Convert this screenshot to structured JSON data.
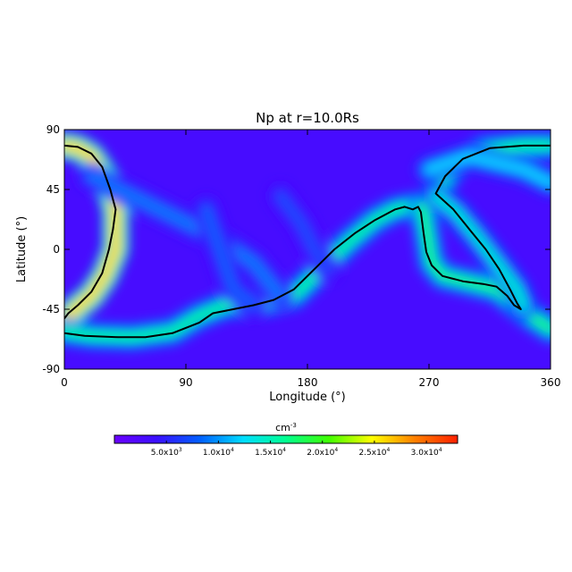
{
  "chart_data": {
    "type": "heatmap",
    "title": "Np at r=10.0Rs",
    "xlabel": "Longitude (°)",
    "ylabel": "Latitude (°)",
    "xlim": [
      0,
      360
    ],
    "ylim": [
      -90,
      90
    ],
    "xticks": [
      0,
      90,
      180,
      270,
      360
    ],
    "yticks": [
      90,
      45,
      0,
      -45,
      -90
    ],
    "xtick_labels": [
      "0",
      "90",
      "180",
      "270",
      "360"
    ],
    "ytick_labels": [
      "90",
      "45",
      "0",
      "-45",
      "-90"
    ],
    "colorbar": {
      "unit_label": "cm",
      "unit_exponent": "-3",
      "range": [
        0,
        33000
      ],
      "colormap": [
        "#6a00ff",
        "#3a10ff",
        "#0060ff",
        "#00ddff",
        "#00ff90",
        "#40ff00",
        "#ffff00",
        "#ff8000",
        "#ff2000"
      ],
      "ticks": [
        5000,
        10000,
        15000,
        20000,
        25000,
        30000
      ],
      "tick_labels": [
        {
          "mantissa": "5.0x10",
          "exponent": "3"
        },
        {
          "mantissa": "1.0x10",
          "exponent": "4"
        },
        {
          "mantissa": "1.5x10",
          "exponent": "4"
        },
        {
          "mantissa": "2.0x10",
          "exponent": "4"
        },
        {
          "mantissa": "2.5x10",
          "exponent": "4"
        },
        {
          "mantissa": "3.0x10",
          "exponent": "4"
        }
      ]
    },
    "background_value": 3000,
    "bright_bands": [
      {
        "value": 26000,
        "points": [
          [
            0,
            78
          ],
          [
            10,
            76
          ],
          [
            20,
            70
          ],
          [
            30,
            55
          ],
          [
            38,
            30
          ],
          [
            38,
            0
          ],
          [
            30,
            -20
          ],
          [
            20,
            -35
          ],
          [
            8,
            -45
          ],
          [
            0,
            -55
          ]
        ]
      },
      {
        "value": 16000,
        "points": [
          [
            0,
            -62
          ],
          [
            20,
            -65
          ],
          [
            50,
            -66
          ],
          [
            80,
            -62
          ],
          [
            100,
            -50
          ],
          [
            120,
            -42
          ],
          [
            150,
            -40
          ],
          [
            170,
            -35
          ],
          [
            190,
            -15
          ],
          [
            210,
            5
          ],
          [
            230,
            22
          ],
          [
            245,
            30
          ],
          [
            260,
            33
          ]
        ]
      },
      {
        "value": 17000,
        "points": [
          [
            265,
            32
          ],
          [
            268,
            15
          ],
          [
            272,
            -10
          ],
          [
            280,
            -20
          ],
          [
            300,
            -25
          ],
          [
            320,
            -30
          ],
          [
            335,
            -42
          ],
          [
            345,
            -50
          ],
          [
            360,
            -60
          ]
        ]
      },
      {
        "value": 16000,
        "points": [
          [
            275,
            42
          ],
          [
            290,
            65
          ],
          [
            310,
            75
          ],
          [
            340,
            78
          ],
          [
            360,
            78
          ]
        ]
      },
      {
        "value": 14000,
        "points": [
          [
            275,
            40
          ],
          [
            290,
            28
          ],
          [
            305,
            10
          ],
          [
            320,
            -10
          ],
          [
            335,
            -30
          ],
          [
            340,
            -43
          ]
        ]
      },
      {
        "value": 9000,
        "points": [
          [
            20,
            55
          ],
          [
            50,
            40
          ],
          [
            90,
            20
          ],
          [
            110,
            10
          ],
          [
            140,
            -10
          ],
          [
            160,
            -35
          ]
        ]
      },
      {
        "value": 8000,
        "points": [
          [
            105,
            30
          ],
          [
            110,
            15
          ],
          [
            115,
            0
          ],
          [
            125,
            -30
          ],
          [
            140,
            -42
          ]
        ]
      },
      {
        "value": 7000,
        "points": [
          [
            160,
            40
          ],
          [
            175,
            20
          ],
          [
            185,
            0
          ],
          [
            195,
            -15
          ]
        ]
      },
      {
        "value": 12000,
        "points": [
          [
            270,
            60
          ],
          [
            300,
            70
          ],
          [
            340,
            60
          ],
          [
            360,
            50
          ]
        ]
      }
    ],
    "neutral_lines": [
      {
        "name": "",
        "points": [
          [
            0,
            78
          ],
          [
            10,
            77
          ],
          [
            20,
            72
          ],
          [
            28,
            62
          ],
          [
            34,
            45
          ],
          [
            38,
            30
          ],
          [
            36,
            15
          ],
          [
            33,
            0
          ],
          [
            28,
            -18
          ],
          [
            20,
            -32
          ],
          [
            10,
            -42
          ],
          [
            3,
            -48
          ],
          [
            0,
            -52
          ]
        ]
      },
      {
        "name": "",
        "points": [
          [
            0,
            -63
          ],
          [
            15,
            -65
          ],
          [
            40,
            -66
          ],
          [
            60,
            -66
          ],
          [
            80,
            -63
          ],
          [
            100,
            -55
          ],
          [
            110,
            -48
          ],
          [
            125,
            -45
          ],
          [
            140,
            -42
          ],
          [
            155,
            -38
          ],
          [
            170,
            -30
          ],
          [
            185,
            -15
          ],
          [
            200,
            0
          ],
          [
            215,
            12
          ],
          [
            230,
            22
          ],
          [
            245,
            30
          ],
          [
            252,
            32
          ],
          [
            258,
            30
          ],
          [
            262,
            32
          ],
          [
            264,
            28
          ],
          [
            266,
            12
          ],
          [
            268,
            -2
          ],
          [
            272,
            -12
          ],
          [
            280,
            -20
          ],
          [
            295,
            -24
          ],
          [
            310,
            -26
          ],
          [
            320,
            -28
          ],
          [
            328,
            -35
          ],
          [
            333,
            -42
          ],
          [
            338,
            -45
          ],
          [
            335,
            -40
          ],
          [
            330,
            -30
          ],
          [
            322,
            -15
          ],
          [
            312,
            0
          ],
          [
            300,
            15
          ],
          [
            288,
            30
          ],
          [
            275,
            42
          ],
          [
            282,
            55
          ],
          [
            295,
            68
          ],
          [
            315,
            76
          ],
          [
            340,
            78
          ],
          [
            360,
            78
          ]
        ]
      }
    ]
  }
}
